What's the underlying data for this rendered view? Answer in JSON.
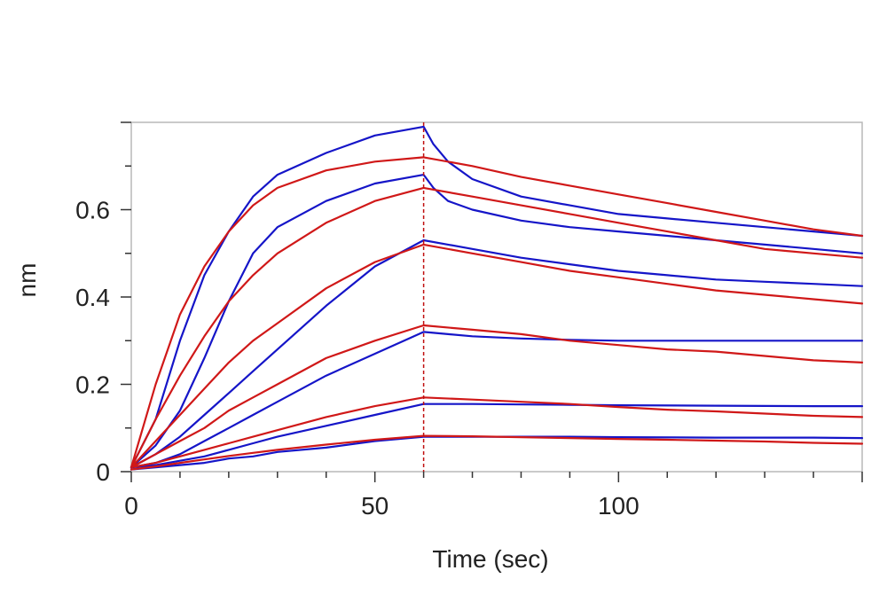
{
  "chart_data": {
    "type": "line",
    "title": "",
    "xlabel": "Time (sec)",
    "ylabel": "nm",
    "xlim": [
      0,
      150
    ],
    "ylim": [
      0,
      0.8
    ],
    "xticks": [
      0,
      50,
      100
    ],
    "xtick_labels": [
      "0",
      "50",
      "100"
    ],
    "yticks": [
      0,
      0.2,
      0.4,
      0.6
    ],
    "ytick_labels": [
      "0",
      "0.2",
      "0.4",
      "0.6"
    ],
    "marker_line_x": 60,
    "grid": false,
    "legend": "none",
    "colors": {
      "measured": "#1515c8",
      "fit": "#d01818",
      "marker": "#c01010",
      "frame": "#b8b8b8"
    },
    "series": [
      {
        "role": "measured",
        "color": "#1515c8",
        "points": [
          [
            0,
            0.01
          ],
          [
            5,
            0.12
          ],
          [
            10,
            0.3
          ],
          [
            15,
            0.45
          ],
          [
            20,
            0.55
          ],
          [
            25,
            0.63
          ],
          [
            30,
            0.68
          ],
          [
            40,
            0.73
          ],
          [
            50,
            0.77
          ],
          [
            60,
            0.79
          ],
          [
            62,
            0.75
          ],
          [
            65,
            0.71
          ],
          [
            70,
            0.67
          ],
          [
            80,
            0.63
          ],
          [
            90,
            0.61
          ],
          [
            100,
            0.59
          ],
          [
            110,
            0.58
          ],
          [
            120,
            0.57
          ],
          [
            130,
            0.56
          ],
          [
            140,
            0.55
          ],
          [
            150,
            0.54
          ]
        ]
      },
      {
        "role": "fit",
        "color": "#d01818",
        "points": [
          [
            0,
            0.01
          ],
          [
            5,
            0.2
          ],
          [
            10,
            0.36
          ],
          [
            15,
            0.47
          ],
          [
            20,
            0.55
          ],
          [
            25,
            0.61
          ],
          [
            30,
            0.65
          ],
          [
            40,
            0.69
          ],
          [
            50,
            0.71
          ],
          [
            60,
            0.72
          ],
          [
            70,
            0.7
          ],
          [
            80,
            0.675
          ],
          [
            90,
            0.655
          ],
          [
            100,
            0.635
          ],
          [
            110,
            0.615
          ],
          [
            120,
            0.595
          ],
          [
            130,
            0.575
          ],
          [
            140,
            0.555
          ],
          [
            150,
            0.54
          ]
        ]
      },
      {
        "role": "measured",
        "color": "#1515c8",
        "points": [
          [
            0,
            0.01
          ],
          [
            5,
            0.06
          ],
          [
            10,
            0.14
          ],
          [
            15,
            0.26
          ],
          [
            20,
            0.39
          ],
          [
            25,
            0.5
          ],
          [
            30,
            0.56
          ],
          [
            40,
            0.62
          ],
          [
            50,
            0.66
          ],
          [
            60,
            0.68
          ],
          [
            62,
            0.65
          ],
          [
            65,
            0.62
          ],
          [
            70,
            0.6
          ],
          [
            80,
            0.575
          ],
          [
            90,
            0.56
          ],
          [
            100,
            0.55
          ],
          [
            110,
            0.54
          ],
          [
            120,
            0.53
          ],
          [
            130,
            0.52
          ],
          [
            140,
            0.51
          ],
          [
            150,
            0.5
          ]
        ]
      },
      {
        "role": "fit",
        "color": "#d01818",
        "points": [
          [
            0,
            0.01
          ],
          [
            5,
            0.12
          ],
          [
            10,
            0.22
          ],
          [
            15,
            0.31
          ],
          [
            20,
            0.39
          ],
          [
            25,
            0.45
          ],
          [
            30,
            0.5
          ],
          [
            40,
            0.57
          ],
          [
            50,
            0.62
          ],
          [
            60,
            0.65
          ],
          [
            70,
            0.63
          ],
          [
            80,
            0.61
          ],
          [
            90,
            0.59
          ],
          [
            100,
            0.57
          ],
          [
            110,
            0.55
          ],
          [
            120,
            0.53
          ],
          [
            130,
            0.51
          ],
          [
            140,
            0.5
          ],
          [
            150,
            0.49
          ]
        ]
      },
      {
        "role": "measured",
        "color": "#1515c8",
        "points": [
          [
            0,
            0.01
          ],
          [
            5,
            0.04
          ],
          [
            10,
            0.08
          ],
          [
            15,
            0.13
          ],
          [
            20,
            0.18
          ],
          [
            25,
            0.23
          ],
          [
            30,
            0.28
          ],
          [
            40,
            0.38
          ],
          [
            50,
            0.47
          ],
          [
            60,
            0.53
          ],
          [
            65,
            0.52
          ],
          [
            70,
            0.51
          ],
          [
            80,
            0.49
          ],
          [
            90,
            0.475
          ],
          [
            100,
            0.46
          ],
          [
            110,
            0.45
          ],
          [
            120,
            0.44
          ],
          [
            130,
            0.435
          ],
          [
            140,
            0.43
          ],
          [
            150,
            0.425
          ]
        ]
      },
      {
        "role": "fit",
        "color": "#d01818",
        "points": [
          [
            0,
            0.01
          ],
          [
            5,
            0.07
          ],
          [
            10,
            0.13
          ],
          [
            15,
            0.19
          ],
          [
            20,
            0.25
          ],
          [
            25,
            0.3
          ],
          [
            30,
            0.34
          ],
          [
            40,
            0.42
          ],
          [
            50,
            0.48
          ],
          [
            60,
            0.52
          ],
          [
            70,
            0.5
          ],
          [
            80,
            0.48
          ],
          [
            90,
            0.46
          ],
          [
            100,
            0.445
          ],
          [
            110,
            0.43
          ],
          [
            120,
            0.415
          ],
          [
            130,
            0.405
          ],
          [
            140,
            0.395
          ],
          [
            150,
            0.385
          ]
        ]
      },
      {
        "role": "measured",
        "color": "#1515c8",
        "points": [
          [
            0,
            0.01
          ],
          [
            5,
            0.02
          ],
          [
            10,
            0.04
          ],
          [
            15,
            0.07
          ],
          [
            20,
            0.1
          ],
          [
            25,
            0.13
          ],
          [
            30,
            0.16
          ],
          [
            40,
            0.22
          ],
          [
            50,
            0.27
          ],
          [
            60,
            0.32
          ],
          [
            65,
            0.315
          ],
          [
            70,
            0.31
          ],
          [
            80,
            0.305
          ],
          [
            90,
            0.302
          ],
          [
            100,
            0.3
          ],
          [
            120,
            0.3
          ],
          [
            140,
            0.3
          ],
          [
            150,
            0.3
          ]
        ]
      },
      {
        "role": "fit",
        "color": "#d01818",
        "points": [
          [
            0,
            0.01
          ],
          [
            5,
            0.04
          ],
          [
            10,
            0.07
          ],
          [
            15,
            0.1
          ],
          [
            20,
            0.14
          ],
          [
            25,
            0.17
          ],
          [
            30,
            0.2
          ],
          [
            40,
            0.26
          ],
          [
            50,
            0.3
          ],
          [
            60,
            0.335
          ],
          [
            70,
            0.325
          ],
          [
            80,
            0.315
          ],
          [
            90,
            0.3
          ],
          [
            100,
            0.29
          ],
          [
            110,
            0.28
          ],
          [
            120,
            0.275
          ],
          [
            130,
            0.265
          ],
          [
            140,
            0.255
          ],
          [
            150,
            0.25
          ]
        ]
      },
      {
        "role": "measured",
        "color": "#1515c8",
        "points": [
          [
            0,
            0.01
          ],
          [
            5,
            0.015
          ],
          [
            10,
            0.025
          ],
          [
            15,
            0.035
          ],
          [
            20,
            0.05
          ],
          [
            25,
            0.065
          ],
          [
            30,
            0.08
          ],
          [
            40,
            0.105
          ],
          [
            50,
            0.13
          ],
          [
            60,
            0.155
          ],
          [
            70,
            0.155
          ],
          [
            80,
            0.154
          ],
          [
            90,
            0.153
          ],
          [
            100,
            0.152
          ],
          [
            120,
            0.151
          ],
          [
            140,
            0.15
          ],
          [
            150,
            0.15
          ]
        ]
      },
      {
        "role": "fit",
        "color": "#d01818",
        "points": [
          [
            0,
            0.01
          ],
          [
            5,
            0.02
          ],
          [
            10,
            0.035
          ],
          [
            15,
            0.05
          ],
          [
            20,
            0.065
          ],
          [
            25,
            0.08
          ],
          [
            30,
            0.095
          ],
          [
            40,
            0.125
          ],
          [
            50,
            0.15
          ],
          [
            60,
            0.17
          ],
          [
            70,
            0.165
          ],
          [
            80,
            0.16
          ],
          [
            90,
            0.155
          ],
          [
            100,
            0.148
          ],
          [
            110,
            0.142
          ],
          [
            120,
            0.138
          ],
          [
            130,
            0.133
          ],
          [
            140,
            0.128
          ],
          [
            150,
            0.125
          ]
        ]
      },
      {
        "role": "measured",
        "color": "#1515c8",
        "points": [
          [
            0,
            0.005
          ],
          [
            5,
            0.01
          ],
          [
            10,
            0.015
          ],
          [
            15,
            0.02
          ],
          [
            20,
            0.03
          ],
          [
            25,
            0.035
          ],
          [
            30,
            0.045
          ],
          [
            40,
            0.055
          ],
          [
            50,
            0.07
          ],
          [
            60,
            0.08
          ],
          [
            70,
            0.08
          ],
          [
            80,
            0.08
          ],
          [
            90,
            0.08
          ],
          [
            100,
            0.079
          ],
          [
            120,
            0.078
          ],
          [
            140,
            0.078
          ],
          [
            150,
            0.077
          ]
        ]
      },
      {
        "role": "fit",
        "color": "#d01818",
        "points": [
          [
            0,
            0.005
          ],
          [
            5,
            0.012
          ],
          [
            10,
            0.02
          ],
          [
            15,
            0.028
          ],
          [
            20,
            0.036
          ],
          [
            25,
            0.043
          ],
          [
            30,
            0.05
          ],
          [
            40,
            0.062
          ],
          [
            50,
            0.073
          ],
          [
            60,
            0.082
          ],
          [
            70,
            0.081
          ],
          [
            80,
            0.079
          ],
          [
            90,
            0.077
          ],
          [
            100,
            0.075
          ],
          [
            110,
            0.073
          ],
          [
            120,
            0.071
          ],
          [
            130,
            0.069
          ],
          [
            140,
            0.066
          ],
          [
            150,
            0.064
          ]
        ]
      }
    ]
  }
}
